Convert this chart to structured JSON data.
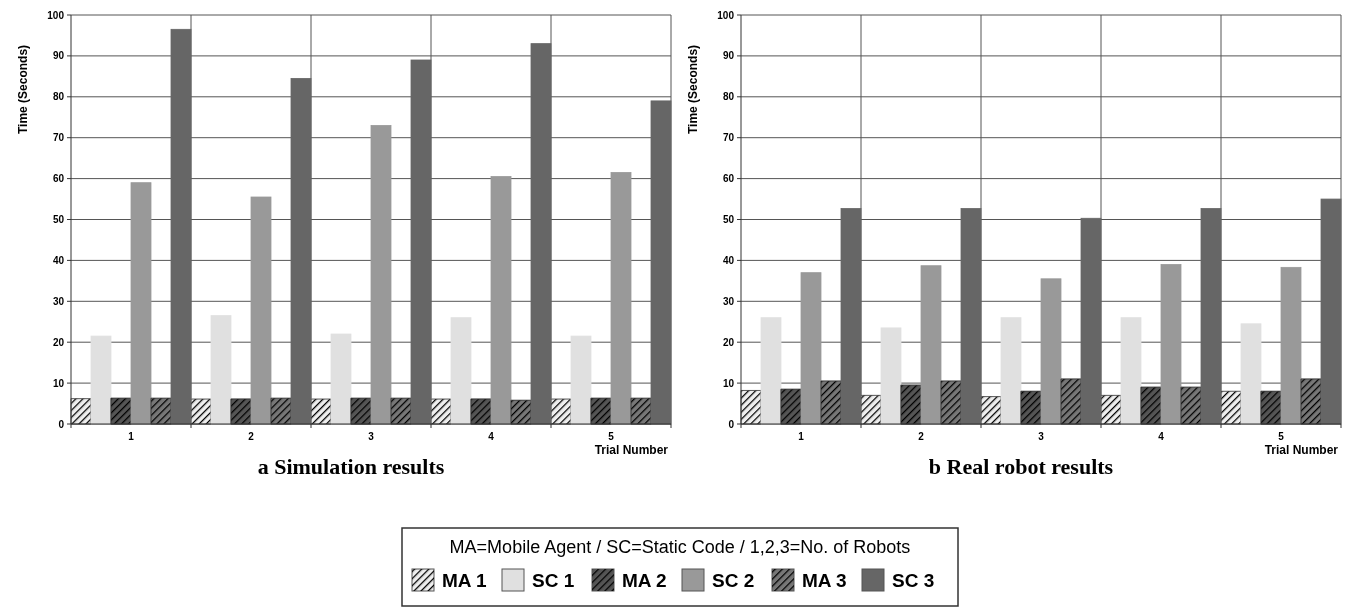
{
  "chart_data": [
    {
      "type": "bar",
      "title": "a   Simulation results",
      "xlabel": "Trial Number",
      "ylabel": "Time (Seconds)",
      "legend_title": "MA=Mobile Agent / SC=Static Code / 1,2,3=No. of Robots",
      "categories": [
        "1",
        "2",
        "3",
        "4",
        "5"
      ],
      "series": [
        {
          "name": "MA 1",
          "color": "#eeeeee",
          "values": [
            6.2,
            6.1,
            6.1,
            6.1,
            6.1
          ]
        },
        {
          "name": "SC 1",
          "color": "#e0e0e0",
          "values": [
            21.5,
            26.5,
            22,
            26,
            21.5
          ]
        },
        {
          "name": "MA 2",
          "color": "#555555",
          "values": [
            6.3,
            6.1,
            6.3,
            6.1,
            6.3
          ]
        },
        {
          "name": "SC 2",
          "color": "#999999",
          "values": [
            59,
            55.5,
            73,
            60.5,
            61.5
          ]
        },
        {
          "name": "MA 3",
          "color": "#777777",
          "values": [
            6.3,
            6.3,
            6.3,
            5.8,
            6.3
          ]
        },
        {
          "name": "SC 3",
          "color": "#666666",
          "values": [
            96.5,
            84.5,
            89,
            93,
            79
          ]
        }
      ],
      "ylim": [
        0,
        100
      ],
      "yticks": [
        0,
        10,
        20,
        30,
        40,
        50,
        60,
        70,
        80,
        90,
        100
      ],
      "grid": true,
      "legend": "bottom"
    },
    {
      "type": "bar",
      "title": "b   Real robot results",
      "xlabel": "Trial Number",
      "ylabel": "Time (Seconds)",
      "categories": [
        "1",
        "2",
        "3",
        "4",
        "5"
      ],
      "series": [
        {
          "color": "#eeeeee",
          "values": [
            8.2,
            7,
            6.7,
            7,
            8
          ]
        },
        {
          "color": "#e0e0e0",
          "values": [
            26,
            23.5,
            26,
            26,
            24.5
          ]
        },
        {
          "color": "#555555",
          "values": [
            8.5,
            9.5,
            8,
            9,
            8
          ]
        },
        {
          "color": "#999999",
          "values": [
            37,
            38.7,
            35.5,
            39,
            38.3
          ]
        },
        {
          "color": "#777777",
          "values": [
            10.5,
            10.5,
            11,
            9,
            11
          ]
        },
        {
          "color": "#666666",
          "values": [
            52.7,
            52.7,
            50.3,
            52.7,
            55
          ]
        }
      ],
      "ylim": [
        0,
        100
      ],
      "yticks": [
        0,
        10,
        20,
        30,
        40,
        50,
        60,
        70,
        80,
        90,
        100
      ],
      "grid": true
    }
  ]
}
